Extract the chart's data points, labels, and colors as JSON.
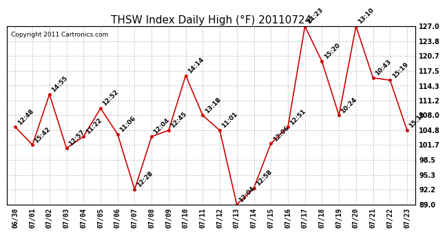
{
  "title": "THSW Index Daily High (°F) 20110724",
  "copyright": "Copyright 2011 Cartronics.com",
  "x_labels": [
    "06/30",
    "07/01",
    "07/02",
    "07/03",
    "07/04",
    "07/05",
    "07/06",
    "07/07",
    "07/08",
    "07/09",
    "07/10",
    "07/11",
    "07/12",
    "07/13",
    "07/14",
    "07/15",
    "07/16",
    "07/17",
    "07/18",
    "07/19",
    "07/20",
    "07/21",
    "07/22",
    "07/23"
  ],
  "y_values": [
    105.5,
    101.7,
    112.5,
    101.0,
    103.5,
    109.5,
    104.0,
    92.2,
    103.5,
    104.8,
    116.5,
    108.0,
    104.8,
    89.0,
    92.5,
    102.0,
    105.5,
    127.0,
    119.5,
    108.0,
    127.0,
    116.0,
    115.5,
    104.8
  ],
  "point_labels": [
    "12:48",
    "15:42",
    "14:55",
    "12:57",
    "11:22",
    "12:52",
    "11:06",
    "12:28",
    "12:04",
    "12:45",
    "14:14",
    "13:18",
    "11:01",
    "12:04",
    "12:58",
    "12:06",
    "12:51",
    "14:23",
    "15:20",
    "10:24",
    "13:10",
    "10:43",
    "15:19",
    "15:19"
  ],
  "ylim": [
    89.0,
    127.0
  ],
  "yticks": [
    89.0,
    92.2,
    95.3,
    98.5,
    101.7,
    104.8,
    108.0,
    111.2,
    114.3,
    117.5,
    120.7,
    123.8,
    127.0
  ],
  "line_color": "#cc0000",
  "marker_color": "#cc0000",
  "bg_color": "#ffffff",
  "grid_color": "#aaaaaa",
  "title_fontsize": 11,
  "tick_fontsize": 7,
  "point_label_fontsize": 6.5,
  "copyright_fontsize": 6.5
}
